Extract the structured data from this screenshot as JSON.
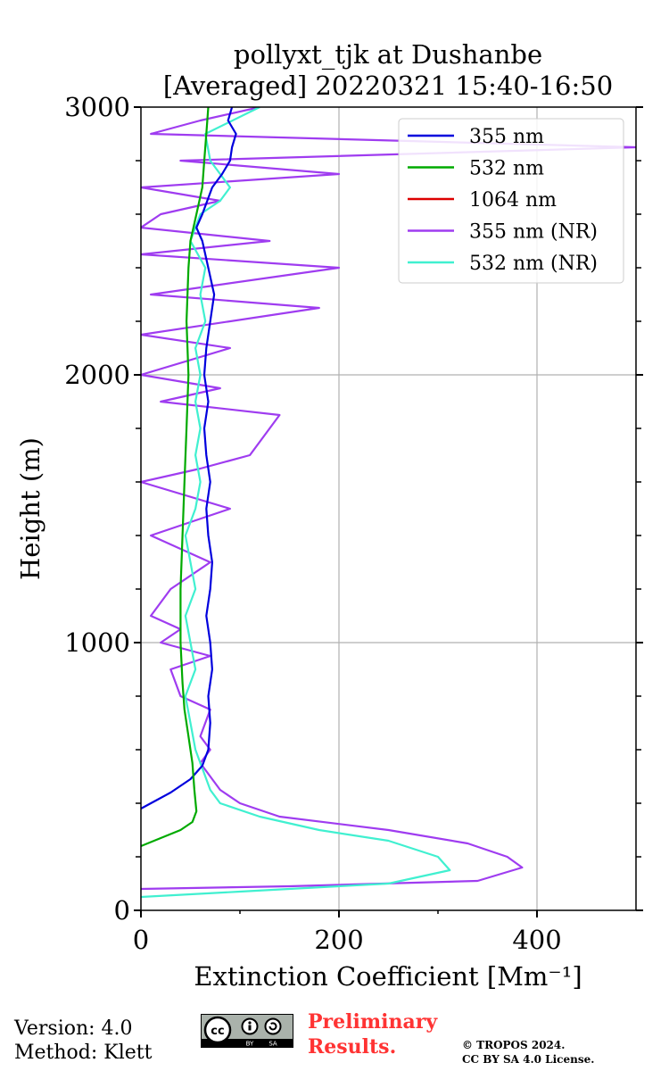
{
  "chart_data": {
    "type": "line",
    "title": "pollyxt_tjk at Dushanbe",
    "subtitle": "[Averaged] 20220321 15:40-16:50",
    "xlabel": "Extinction Coefficient [Mm⁻¹]",
    "ylabel": "Height (m)",
    "xlim": [
      0,
      500
    ],
    "ylim": [
      0,
      3000
    ],
    "x_ticks": [
      0,
      200,
      400
    ],
    "y_ticks": [
      0,
      1000,
      2000,
      3000
    ],
    "grid": true,
    "legend_position": "top-right",
    "series": [
      {
        "name": "355 nm",
        "color": "#0000dd",
        "points": [
          [
            0,
            380
          ],
          [
            10,
            400
          ],
          [
            30,
            440
          ],
          [
            50,
            490
          ],
          [
            62,
            540
          ],
          [
            68,
            600
          ],
          [
            70,
            700
          ],
          [
            68,
            800
          ],
          [
            72,
            900
          ],
          [
            70,
            1000
          ],
          [
            66,
            1100
          ],
          [
            70,
            1200
          ],
          [
            72,
            1300
          ],
          [
            68,
            1400
          ],
          [
            66,
            1500
          ],
          [
            70,
            1600
          ],
          [
            66,
            1700
          ],
          [
            64,
            1800
          ],
          [
            68,
            1900
          ],
          [
            64,
            2000
          ],
          [
            66,
            2100
          ],
          [
            70,
            2200
          ],
          [
            74,
            2300
          ],
          [
            68,
            2400
          ],
          [
            62,
            2500
          ],
          [
            56,
            2550
          ],
          [
            62,
            2600
          ],
          [
            72,
            2700
          ],
          [
            82,
            2750
          ],
          [
            90,
            2800
          ],
          [
            92,
            2850
          ],
          [
            96,
            2900
          ],
          [
            88,
            2950
          ],
          [
            92,
            3000
          ]
        ]
      },
      {
        "name": "532 nm",
        "color": "#00aa00",
        "points": [
          [
            0,
            240
          ],
          [
            20,
            270
          ],
          [
            40,
            300
          ],
          [
            52,
            330
          ],
          [
            56,
            370
          ],
          [
            54,
            450
          ],
          [
            52,
            550
          ],
          [
            48,
            650
          ],
          [
            44,
            750
          ],
          [
            42,
            850
          ],
          [
            40,
            1000
          ],
          [
            40,
            1200
          ],
          [
            42,
            1400
          ],
          [
            44,
            1600
          ],
          [
            46,
            1800
          ],
          [
            48,
            2000
          ],
          [
            46,
            2200
          ],
          [
            48,
            2400
          ],
          [
            50,
            2500
          ],
          [
            56,
            2600
          ],
          [
            62,
            2700
          ],
          [
            64,
            2800
          ],
          [
            66,
            2900
          ],
          [
            68,
            3000
          ]
        ]
      },
      {
        "name": "1064 nm",
        "color": "#dd0000",
        "points": []
      },
      {
        "name": "355 nm (NR)",
        "color": "#9f3cf0",
        "points": [
          [
            0,
            80
          ],
          [
            150,
            90
          ],
          [
            340,
            110
          ],
          [
            385,
            160
          ],
          [
            370,
            200
          ],
          [
            330,
            250
          ],
          [
            250,
            300
          ],
          [
            140,
            350
          ],
          [
            100,
            400
          ],
          [
            80,
            450
          ],
          [
            70,
            500
          ],
          [
            60,
            550
          ],
          [
            70,
            600
          ],
          [
            60,
            650
          ],
          [
            70,
            750
          ],
          [
            40,
            800
          ],
          [
            30,
            900
          ],
          [
            70,
            950
          ],
          [
            20,
            1000
          ],
          [
            40,
            1050
          ],
          [
            10,
            1100
          ],
          [
            20,
            1150
          ],
          [
            30,
            1200
          ],
          [
            70,
            1300
          ],
          [
            10,
            1400
          ],
          [
            50,
            1450
          ],
          [
            90,
            1500
          ],
          [
            0,
            1600
          ],
          [
            60,
            1650
          ],
          [
            110,
            1700
          ],
          [
            140,
            1850
          ],
          [
            20,
            1900
          ],
          [
            80,
            1950
          ],
          [
            0,
            2000
          ],
          [
            90,
            2100
          ],
          [
            0,
            2150
          ],
          [
            180,
            2250
          ],
          [
            10,
            2300
          ],
          [
            200,
            2400
          ],
          [
            0,
            2450
          ],
          [
            130,
            2500
          ],
          [
            0,
            2550
          ],
          [
            20,
            2600
          ],
          [
            80,
            2650
          ],
          [
            0,
            2700
          ],
          [
            200,
            2750
          ],
          [
            40,
            2800
          ],
          [
            500,
            2850
          ],
          [
            10,
            2900
          ],
          [
            60,
            2950
          ],
          [
            120,
            3000
          ]
        ]
      },
      {
        "name": "532 nm (NR)",
        "color": "#40f0d0",
        "points": [
          [
            0,
            50
          ],
          [
            100,
            70
          ],
          [
            250,
            100
          ],
          [
            312,
            150
          ],
          [
            300,
            200
          ],
          [
            250,
            260
          ],
          [
            180,
            300
          ],
          [
            120,
            350
          ],
          [
            80,
            400
          ],
          [
            70,
            450
          ],
          [
            65,
            500
          ],
          [
            60,
            550
          ],
          [
            55,
            600
          ],
          [
            50,
            700
          ],
          [
            45,
            800
          ],
          [
            55,
            900
          ],
          [
            50,
            1000
          ],
          [
            45,
            1100
          ],
          [
            55,
            1200
          ],
          [
            50,
            1300
          ],
          [
            45,
            1400
          ],
          [
            55,
            1500
          ],
          [
            60,
            1600
          ],
          [
            55,
            1700
          ],
          [
            60,
            1800
          ],
          [
            55,
            1900
          ],
          [
            60,
            2000
          ],
          [
            55,
            2100
          ],
          [
            65,
            2200
          ],
          [
            60,
            2300
          ],
          [
            65,
            2400
          ],
          [
            50,
            2500
          ],
          [
            60,
            2600
          ],
          [
            80,
            2650
          ],
          [
            90,
            2700
          ],
          [
            70,
            2800
          ],
          [
            65,
            2900
          ],
          [
            120,
            3000
          ]
        ]
      }
    ]
  },
  "footer": {
    "version": "Version: 4.0",
    "method": "Method: Klett",
    "preliminary_line1": "Preliminary",
    "preliminary_line2": "Results.",
    "copyright_line1": "© TROPOS 2024.",
    "copyright_line2": "CC BY SA 4.0 License.",
    "cc_badge": "cc by sa"
  }
}
